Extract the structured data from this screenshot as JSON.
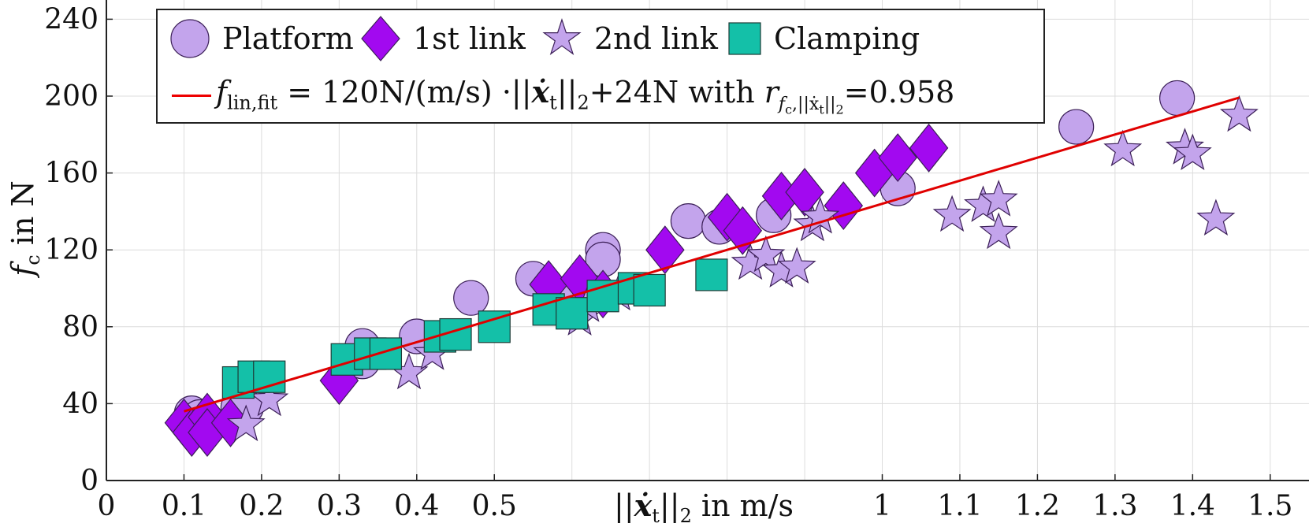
{
  "chart_data": {
    "type": "scatter",
    "title": "",
    "xlabel": "||ẋ_t||₂ in m/s",
    "ylabel": "f_c in N",
    "xlim": [
      0,
      1.55
    ],
    "ylim": [
      0,
      250
    ],
    "x_ticks": [
      "0",
      "0.1",
      "0.2",
      "0.3",
      "0.4",
      "0.5",
      "1",
      "1.1",
      "1.2",
      "1.3",
      "1.4",
      "1.5"
    ],
    "x_tick_values": [
      0,
      0.1,
      0.2,
      0.3,
      0.4,
      0.5,
      1.0,
      1.1,
      1.2,
      1.3,
      1.4,
      1.5
    ],
    "x_grid_values": [
      0.6,
      0.7,
      0.8,
      0.9
    ],
    "y_ticks": [
      "0",
      "40",
      "80",
      "120",
      "160",
      "200",
      "240"
    ],
    "y_tick_values": [
      0,
      40,
      80,
      120,
      160,
      200,
      240
    ],
    "grid": true,
    "legend_position": "top",
    "series": [
      {
        "name": "Platform",
        "marker": "circle",
        "color": "#c3a4ec",
        "points": [
          [
            0.11,
            35
          ],
          [
            0.12,
            33
          ],
          [
            0.17,
            38
          ],
          [
            0.18,
            38
          ],
          [
            0.33,
            70
          ],
          [
            0.33,
            62
          ],
          [
            0.4,
            75
          ],
          [
            0.47,
            95
          ],
          [
            0.55,
            105
          ],
          [
            0.6,
            98
          ],
          [
            0.64,
            120
          ],
          [
            0.64,
            115
          ],
          [
            0.75,
            135
          ],
          [
            0.79,
            132
          ],
          [
            0.86,
            138
          ],
          [
            1.02,
            152
          ],
          [
            1.25,
            184
          ],
          [
            1.38,
            199
          ]
        ]
      },
      {
        "name": "1st link",
        "marker": "diamond",
        "color": "#a209f0",
        "points": [
          [
            0.1,
            30
          ],
          [
            0.11,
            25
          ],
          [
            0.13,
            33
          ],
          [
            0.13,
            25
          ],
          [
            0.16,
            30
          ],
          [
            0.3,
            52
          ],
          [
            0.57,
            102
          ],
          [
            0.61,
            105
          ],
          [
            0.64,
            97
          ],
          [
            0.72,
            120
          ],
          [
            0.8,
            137
          ],
          [
            0.82,
            130
          ],
          [
            0.87,
            148
          ],
          [
            0.9,
            150
          ],
          [
            0.95,
            143
          ],
          [
            0.99,
            160
          ],
          [
            1.02,
            168
          ],
          [
            1.06,
            173
          ]
        ]
      },
      {
        "name": "2nd link",
        "marker": "star",
        "color": "#c3a4ec",
        "points": [
          [
            0.18,
            29
          ],
          [
            0.21,
            42
          ],
          [
            0.39,
            56
          ],
          [
            0.42,
            66
          ],
          [
            0.61,
            84
          ],
          [
            0.62,
            91
          ],
          [
            0.66,
            97
          ],
          [
            0.83,
            113
          ],
          [
            0.85,
            117
          ],
          [
            0.87,
            109
          ],
          [
            0.89,
            111
          ],
          [
            0.91,
            133
          ],
          [
            0.92,
            137
          ],
          [
            1.09,
            138
          ],
          [
            1.13,
            143
          ],
          [
            1.15,
            129
          ],
          [
            1.15,
            146
          ],
          [
            1.31,
            172
          ],
          [
            1.39,
            173
          ],
          [
            1.4,
            170
          ],
          [
            1.43,
            136
          ],
          [
            1.46,
            190
          ]
        ]
      },
      {
        "name": "Clamping",
        "marker": "square",
        "color": "#14c0a8",
        "points": [
          [
            0.17,
            51
          ],
          [
            0.19,
            54
          ],
          [
            0.21,
            54
          ],
          [
            0.31,
            63
          ],
          [
            0.34,
            66
          ],
          [
            0.36,
            66
          ],
          [
            0.43,
            75
          ],
          [
            0.45,
            76
          ],
          [
            0.5,
            80
          ],
          [
            0.57,
            89
          ],
          [
            0.6,
            87
          ],
          [
            0.64,
            96
          ],
          [
            0.68,
            100
          ],
          [
            0.7,
            99
          ],
          [
            0.78,
            107
          ]
        ]
      }
    ],
    "fit": {
      "label_main": "f",
      "label_sub": "lin,fit",
      "label_expr": " = 120N/(m/s) ·||",
      "label_var": "ẋ",
      "label_var_sub": "t",
      "label_norm": "||",
      "label_norm_sub": "2",
      "label_rest": "+24N with ",
      "label_r": "r",
      "label_r_sub": "f",
      "label_r_subsub": "c",
      "label_r_sub2": ",||ẋ",
      "label_r_sub3": "t",
      "label_r_sub4": "||",
      "label_r_sub5": "2",
      "label_value": "=0.958",
      "slope": 120,
      "intercept": 24,
      "x_range": [
        0.1,
        1.46
      ],
      "color": "#e00000"
    },
    "legend": [
      "Platform",
      "1st link",
      "2nd link",
      "Clamping"
    ]
  }
}
